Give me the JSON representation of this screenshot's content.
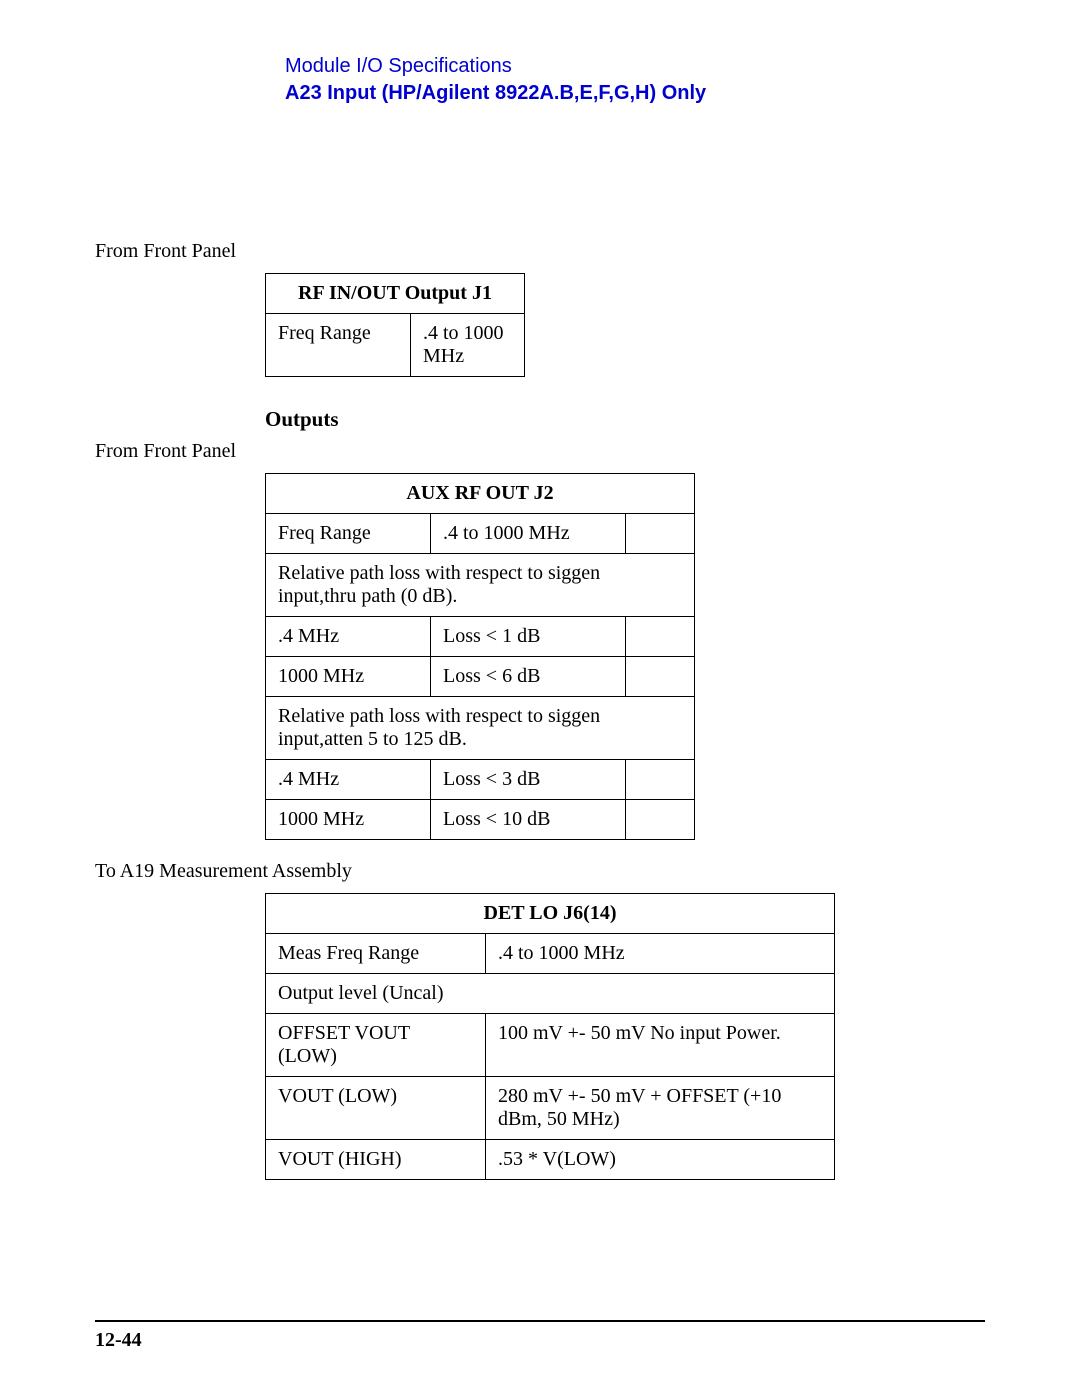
{
  "header": {
    "line1": "Module I/O Specifications",
    "line2": "A23 Input (HP/Agilent 8922A.B,E,F,G,H) Only"
  },
  "section1": {
    "source": "From Front Panel",
    "table": {
      "title": "RF IN/OUT Output J1",
      "row": {
        "label": "Freq Range",
        "value": ".4 to 1000 MHz"
      }
    }
  },
  "outputs_heading": "Outputs",
  "section2": {
    "source": "From Front Panel",
    "table": {
      "title": "AUX RF OUT J2",
      "freq": {
        "label": "Freq Range",
        "value": ".4 to 1000 MHz"
      },
      "span1": "Relative path loss with respect to siggen input,thru path (0 dB).",
      "r1": {
        "label": ".4 MHz",
        "value": "Loss < 1 dB"
      },
      "r2": {
        "label": "1000 MHz",
        "value": "Loss < 6 dB"
      },
      "span2": "Relative path loss with respect to siggen input,atten 5 to 125 dB.",
      "r3": {
        "label": ".4 MHz",
        "value": "Loss < 3 dB"
      },
      "r4": {
        "label": "1000 MHz",
        "value": "Loss < 10 dB"
      }
    }
  },
  "section3": {
    "source": "To A19 Measurement Assembly",
    "table": {
      "title": "DET LO J6(14)",
      "r1": {
        "label": "Meas Freq Range",
        "value": ".4 to 1000 MHz"
      },
      "span1": "Output level  (Uncal)",
      "r2": {
        "label": "OFFSET VOUT (LOW)",
        "value": "100 mV +- 50 mV  No input Power."
      },
      "r3": {
        "label": "VOUT (LOW)",
        "value": "280 mV +- 50 mV + OFFSET   (+10 dBm, 50 MHz)"
      },
      "r4": {
        "label": "VOUT (HIGH)",
        "value": ".53 * V(LOW)"
      }
    }
  },
  "page_number": "12-44"
}
